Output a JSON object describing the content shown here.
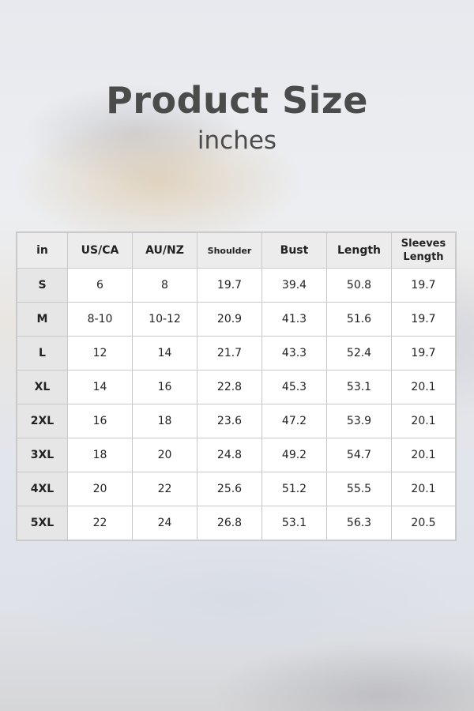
{
  "title": "Product Size",
  "subtitle": "inches",
  "table": {
    "headers": [
      "in",
      "US/CA",
      "AU/NZ",
      "Shoulder",
      "Bust",
      "Length",
      "Sleeves Length"
    ],
    "rows": [
      [
        "S",
        "6",
        "8",
        "19.7",
        "39.4",
        "50.8",
        "19.7"
      ],
      [
        "M",
        "8-10",
        "10-12",
        "20.9",
        "41.3",
        "51.6",
        "19.7"
      ],
      [
        "L",
        "12",
        "14",
        "21.7",
        "43.3",
        "52.4",
        "19.7"
      ],
      [
        "XL",
        "14",
        "16",
        "22.8",
        "45.3",
        "53.1",
        "20.1"
      ],
      [
        "2XL",
        "16",
        "18",
        "23.6",
        "47.2",
        "53.9",
        "20.1"
      ],
      [
        "3XL",
        "18",
        "20",
        "24.8",
        "49.2",
        "54.7",
        "20.1"
      ],
      [
        "4XL",
        "20",
        "22",
        "25.6",
        "51.2",
        "55.5",
        "20.1"
      ],
      [
        "5XL",
        "22",
        "24",
        "26.8",
        "53.1",
        "56.3",
        "20.5"
      ]
    ]
  }
}
